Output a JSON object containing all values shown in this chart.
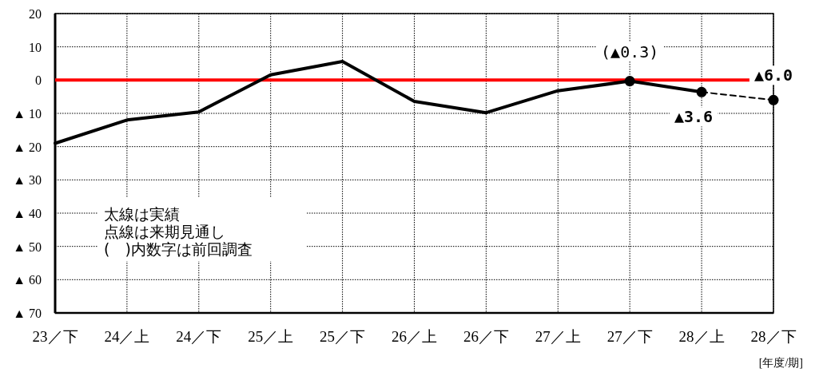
{
  "chart_data": {
    "type": "line",
    "categories": [
      "23／下",
      "24／上",
      "24／下",
      "25／上",
      "25／下",
      "26／上",
      "26／下",
      "27／上",
      "27／下",
      "28／上",
      "28／下"
    ],
    "series": [
      {
        "color": "#000000",
        "line_style": "solid",
        "marker": "none",
        "values": [
          -19,
          -12,
          -9.6,
          1.6,
          5.6,
          -6.4,
          -9.8,
          -3.2,
          -0.3,
          -3.6,
          null
        ]
      },
      {
        "type": "line",
        "color": "#000000",
        "line_style": "dashed",
        "marker": "none",
        "values": [
          null,
          null,
          null,
          null,
          null,
          null,
          null,
          null,
          null,
          -3.6,
          -6.0
        ]
      },
      {
        "type": "scatter",
        "color": "#000000",
        "marker": "circle",
        "x": [
          "27／下",
          "28／上",
          "28／下"
        ],
        "values": [
          -0.3,
          -3.6,
          -6.0
        ]
      }
    ],
    "ylim": [
      -70,
      20
    ],
    "yticks": [
      20,
      10,
      0,
      {
        "value": -10,
        "label": "▲ 10"
      },
      {
        "value": -20,
        "label": "▲ 20"
      },
      {
        "value": -30,
        "label": "▲ 30"
      },
      {
        "value": -40,
        "label": "▲ 40"
      },
      {
        "value": -50,
        "label": "▲ 50"
      },
      {
        "value": -60,
        "label": "▲ 60"
      },
      {
        "value": -70,
        "label": "▲ 70"
      }
    ],
    "grid": true,
    "ref_lines": [
      {
        "axis": "y",
        "value": 0,
        "color": "#ff0000"
      }
    ],
    "annotations": [
      "(▲0.3)",
      {
        "text": "▲3.6",
        "x": "28／上",
        "y": -3.6
      },
      {
        "text": "▲6.0",
        "x": "28／下",
        "y": -6.0
      },
      "太線は実績",
      "点線は来期見通し",
      "(　)内数字は前回調査",
      "[年度/期]"
    ]
  }
}
